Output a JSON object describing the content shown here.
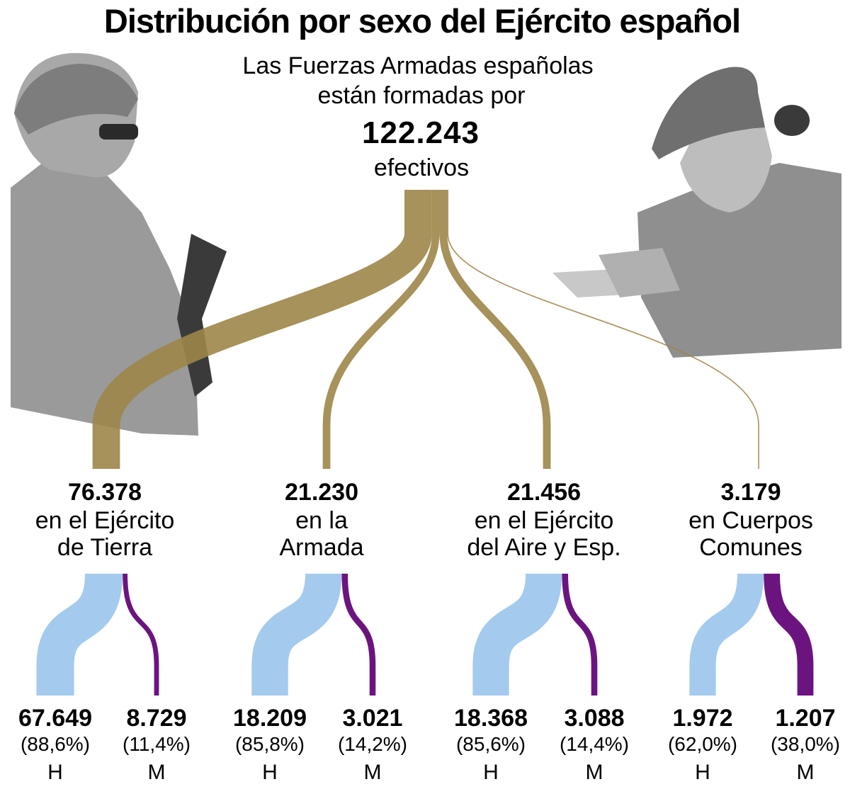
{
  "title": "Distribución por sexo del Ejército español",
  "intro": {
    "line1": "Las Fuerzas Armadas españolas",
    "line2": "están formadas por",
    "total": "122.243",
    "line3": "efectivos"
  },
  "colors": {
    "flow": "#9c8648",
    "men": "#a4cbee",
    "women": "#6b1480",
    "text": "#1b1718",
    "photo": "#8a8a8a"
  },
  "images": {
    "left": "soldier-photo",
    "right": "female-soldier-photo"
  },
  "chart_data": {
    "type": "sankey",
    "title": "Distribución por sexo del Ejército español",
    "total": 122243,
    "branches": [
      {
        "value": 76378,
        "value_label": "76.378",
        "label_lines": [
          "en el Ejército",
          "de Tierra"
        ],
        "men": 67649,
        "men_label": "67.649",
        "men_pct": "(88,6%)",
        "women": 8729,
        "women_label": "8.729",
        "women_pct": "(11,4%)"
      },
      {
        "value": 21230,
        "value_label": "21.230",
        "label_lines": [
          "en la",
          "Armada"
        ],
        "men": 18209,
        "men_label": "18.209",
        "men_pct": "(85,8%)",
        "women": 3021,
        "women_label": "3.021",
        "women_pct": "(14,2%)"
      },
      {
        "value": 21456,
        "value_label": "21.456",
        "label_lines": [
          "en el Ejército",
          "del Aire y Esp."
        ],
        "men": 18368,
        "men_label": "18.368",
        "men_pct": "(85,6%)",
        "women": 3088,
        "women_label": "3.088",
        "women_pct": "(14,4%)"
      },
      {
        "value": 3179,
        "value_label": "3.179",
        "label_lines": [
          "en Cuerpos",
          "Comunes"
        ],
        "men": 1972,
        "men_label": "1.972",
        "men_pct": "(62,0%)",
        "women": 1207,
        "women_label": "1.207",
        "women_pct": "(38,0%)"
      }
    ],
    "men_abbr": "H",
    "women_abbr": "M"
  }
}
